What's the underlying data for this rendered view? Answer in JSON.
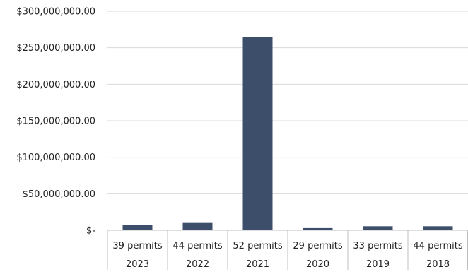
{
  "chart_data": {
    "type": "bar",
    "title": "",
    "xlabel": "",
    "ylabel": "",
    "ylim": [
      0,
      300000000
    ],
    "yticks": [
      0,
      50000000,
      100000000,
      150000000,
      200000000,
      250000000,
      300000000
    ],
    "ytick_labels": [
      "$-",
      "$50,000,000.00",
      "$100,000,000.00",
      "$150,000,000.00",
      "$200,000,000.00",
      "$250,000,000.00",
      "$300,000,000.00"
    ],
    "grid": true,
    "legend": "none",
    "bar_color": "#3d4e6b",
    "categories": [
      {
        "label": "39 permits",
        "year": "2023"
      },
      {
        "label": "44 permits",
        "year": "2022"
      },
      {
        "label": "52 permits",
        "year": "2021"
      },
      {
        "label": "29 permits",
        "year": "2020"
      },
      {
        "label": "33 permits",
        "year": "2019"
      },
      {
        "label": "44 permits",
        "year": "2018"
      }
    ],
    "values": [
      7500000,
      10000000,
      265000000,
      3000000,
      5500000,
      5500000
    ]
  }
}
